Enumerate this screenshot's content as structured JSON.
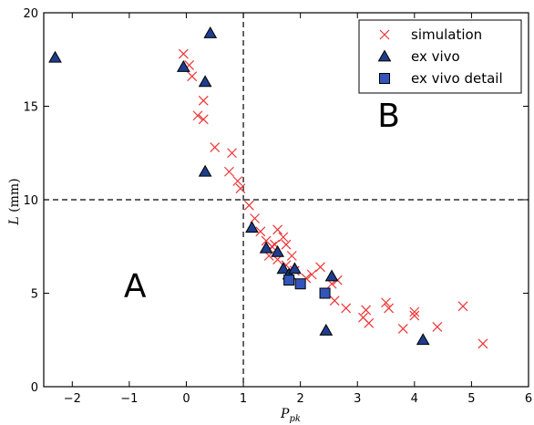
{
  "chart_data": {
    "type": "scatter",
    "title": "",
    "xlabel_main": "P",
    "xlabel_sub": "pk",
    "ylabel_main": "L",
    "ylabel_unit": "(mm)",
    "xlim": [
      -2.5,
      6
    ],
    "ylim": [
      0,
      20
    ],
    "xticks": [
      -2,
      -1,
      0,
      1,
      2,
      3,
      4,
      5,
      6
    ],
    "xtick_labels": [
      "−2",
      "−1",
      "0",
      "1",
      "2",
      "3",
      "4",
      "5",
      "6"
    ],
    "yticks": [
      0,
      5,
      10,
      15,
      20
    ],
    "ytick_labels": [
      "0",
      "5",
      "10",
      "15",
      "20"
    ],
    "grid": false,
    "legend_position": "top-right",
    "reference_lines": [
      {
        "orientation": "vertical",
        "value": 1,
        "style": "dashed"
      },
      {
        "orientation": "horizontal",
        "value": 10,
        "style": "dashed"
      }
    ],
    "annotations": [
      {
        "text": "A",
        "x": -0.9,
        "y": 4.8
      },
      {
        "text": "B",
        "x": 3.55,
        "y": 13.9
      }
    ],
    "series": [
      {
        "name": "simulation",
        "marker": "x",
        "color": "#ee3333",
        "points": [
          [
            -0.05,
            17.8
          ],
          [
            0.05,
            17.2
          ],
          [
            0.1,
            16.6
          ],
          [
            0.3,
            15.3
          ],
          [
            0.2,
            14.5
          ],
          [
            0.3,
            14.3
          ],
          [
            0.5,
            12.8
          ],
          [
            0.8,
            12.5
          ],
          [
            0.75,
            11.5
          ],
          [
            0.9,
            11.0
          ],
          [
            0.95,
            10.6
          ],
          [
            1.1,
            9.7
          ],
          [
            1.2,
            9.0
          ],
          [
            1.3,
            8.3
          ],
          [
            1.4,
            7.8
          ],
          [
            1.5,
            7.5
          ],
          [
            1.45,
            7.0
          ],
          [
            1.55,
            7.6
          ],
          [
            1.6,
            8.4
          ],
          [
            1.7,
            8.0
          ],
          [
            1.75,
            7.6
          ],
          [
            1.6,
            6.8
          ],
          [
            1.75,
            6.5
          ],
          [
            1.85,
            7.0
          ],
          [
            1.9,
            6.2
          ],
          [
            2.1,
            5.8
          ],
          [
            2.2,
            6.0
          ],
          [
            2.35,
            6.4
          ],
          [
            2.55,
            5.5
          ],
          [
            2.65,
            5.7
          ],
          [
            2.6,
            4.6
          ],
          [
            2.8,
            4.2
          ],
          [
            3.15,
            4.1
          ],
          [
            3.1,
            3.7
          ],
          [
            3.2,
            3.4
          ],
          [
            3.5,
            4.5
          ],
          [
            3.55,
            4.2
          ],
          [
            3.8,
            3.1
          ],
          [
            4.0,
            3.8
          ],
          [
            4.0,
            4.0
          ],
          [
            4.4,
            3.2
          ],
          [
            4.85,
            4.3
          ],
          [
            5.2,
            2.3
          ]
        ]
      },
      {
        "name": "ex vivo",
        "marker": "triangle",
        "color": "#1f3d8c",
        "points": [
          [
            -2.3,
            17.6
          ],
          [
            -0.05,
            17.1
          ],
          [
            0.42,
            18.9
          ],
          [
            0.33,
            16.3
          ],
          [
            0.33,
            11.5
          ],
          [
            1.15,
            8.5
          ],
          [
            1.4,
            7.4
          ],
          [
            1.6,
            7.2
          ],
          [
            1.7,
            6.3
          ],
          [
            1.8,
            6.0
          ],
          [
            1.9,
            6.3
          ],
          [
            2.55,
            5.9
          ],
          [
            2.45,
            3.0
          ],
          [
            4.15,
            2.5
          ]
        ]
      },
      {
        "name": "ex vivo detail",
        "marker": "square",
        "color": "#3355bb",
        "points": [
          [
            1.8,
            5.7
          ],
          [
            2.0,
            5.5
          ],
          [
            2.43,
            5.0
          ]
        ]
      }
    ]
  }
}
